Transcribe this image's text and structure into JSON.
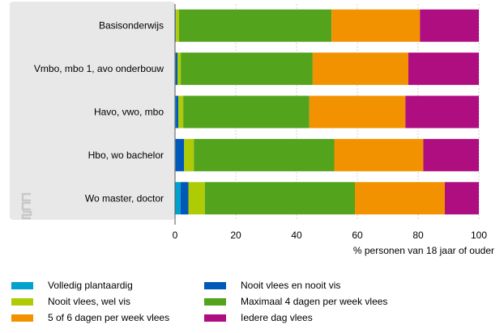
{
  "chart_data": {
    "type": "bar",
    "orientation": "horizontal",
    "stacked": true,
    "title": "",
    "xlabel": "% personen van 18 jaar of ouder",
    "ylabel": "",
    "xlim": [
      0,
      100
    ],
    "xticks": [
      0,
      20,
      40,
      60,
      80,
      100
    ],
    "grid": true,
    "legend_position": "bottom",
    "categories": [
      "Basisonderwijs",
      "Vmbo, mbo 1, avo onderbouw",
      "Havo, vwo, mbo",
      "Hbo, wo bachelor",
      "Wo master, doctor"
    ],
    "series": [
      {
        "name": "Volledig plantaardig",
        "color": "#00a1cd",
        "values": [
          0.2,
          0.2,
          0.3,
          0.2,
          1.8
        ]
      },
      {
        "name": "Nooit vlees en nooit vis",
        "color": "#0058b8",
        "values": [
          0.1,
          0.6,
          0.8,
          2.8,
          2.6
        ]
      },
      {
        "name": "Nooit vlees, wel vis",
        "color": "#afcb05",
        "values": [
          1.0,
          1.1,
          1.6,
          3.2,
          5.4
        ]
      },
      {
        "name": "Maximaal 4 dagen per week vlees",
        "color": "#53a31d",
        "values": [
          50.2,
          43.4,
          41.5,
          46.2,
          49.4
        ]
      },
      {
        "name": "5 of 6 dagen per week vlees",
        "color": "#f39200",
        "values": [
          29.1,
          31.5,
          31.6,
          29.3,
          29.6
        ]
      },
      {
        "name": "Iedere dag vlees",
        "color": "#af0e80",
        "values": [
          19.4,
          23.2,
          24.2,
          18.3,
          11.2
        ]
      }
    ]
  },
  "background": {
    "panel_color": "#e8e8e8",
    "logo_icon": "cbs-logo-icon"
  }
}
